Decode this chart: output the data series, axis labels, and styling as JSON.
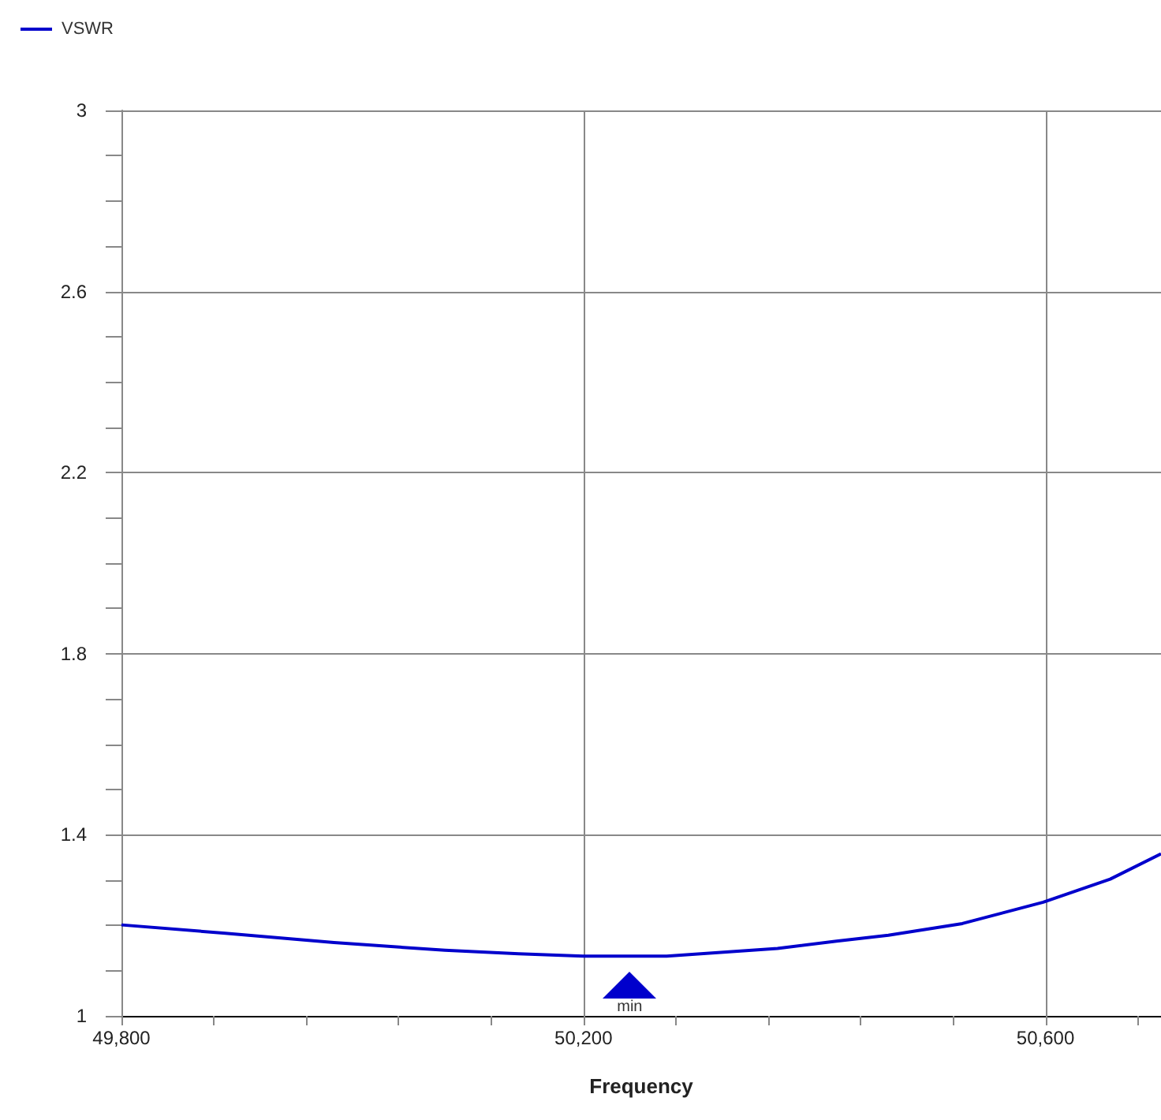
{
  "chart_data": {
    "type": "line",
    "xlabel": "Frequency",
    "x": [
      49800,
      49888,
      49984,
      50080,
      50144,
      50200,
      50272,
      50368,
      50419,
      50464,
      50528,
      50598,
      50656,
      50700
    ],
    "series": [
      {
        "name": "VSWR",
        "color": "#0000cc",
        "values": [
          1.201,
          1.183,
          1.162,
          1.145,
          1.137,
          1.132,
          1.132,
          1.149,
          1.165,
          1.178,
          1.204,
          1.251,
          1.302,
          1.358
        ]
      }
    ],
    "xlim": [
      49800,
      50700
    ],
    "xticks": [
      {
        "value": 49800,
        "label": "49,800"
      },
      {
        "value": 49880,
        "label": null
      },
      {
        "value": 49960,
        "label": null
      },
      {
        "value": 50040,
        "label": null
      },
      {
        "value": 50120,
        "label": null
      },
      {
        "value": 50200,
        "label": "50,200"
      },
      {
        "value": 50280,
        "label": null
      },
      {
        "value": 50360,
        "label": null
      },
      {
        "value": 50440,
        "label": null
      },
      {
        "value": 50520,
        "label": null
      },
      {
        "value": 50600,
        "label": "50,600"
      },
      {
        "value": 50680,
        "label": null
      }
    ],
    "ylim": [
      1,
      3
    ],
    "yticks": [
      1,
      {
        "value": 1.1,
        "label": null
      },
      {
        "value": 1.2,
        "label": null
      },
      {
        "value": 1.3,
        "label": null
      },
      1.4,
      {
        "value": 1.5,
        "label": null
      },
      {
        "value": 1.6,
        "label": null
      },
      {
        "value": 1.7,
        "label": null
      },
      1.8,
      {
        "value": 1.9,
        "label": null
      },
      {
        "value": 2,
        "label": null
      },
      {
        "value": 2.1,
        "label": null
      },
      2.2,
      {
        "value": 2.3,
        "label": null
      },
      {
        "value": 2.4,
        "label": null
      },
      {
        "value": 2.5,
        "label": null
      },
      2.6,
      {
        "value": 2.7,
        "label": null
      },
      {
        "value": 2.8,
        "label": null
      },
      {
        "value": 2.9,
        "label": null
      },
      3
    ],
    "annotations": [
      {
        "text": "min",
        "x": 50240,
        "y": 1.13
      }
    ],
    "grid": true,
    "legend": "top left",
    "marker": "none",
    "line_style": "solid"
  }
}
